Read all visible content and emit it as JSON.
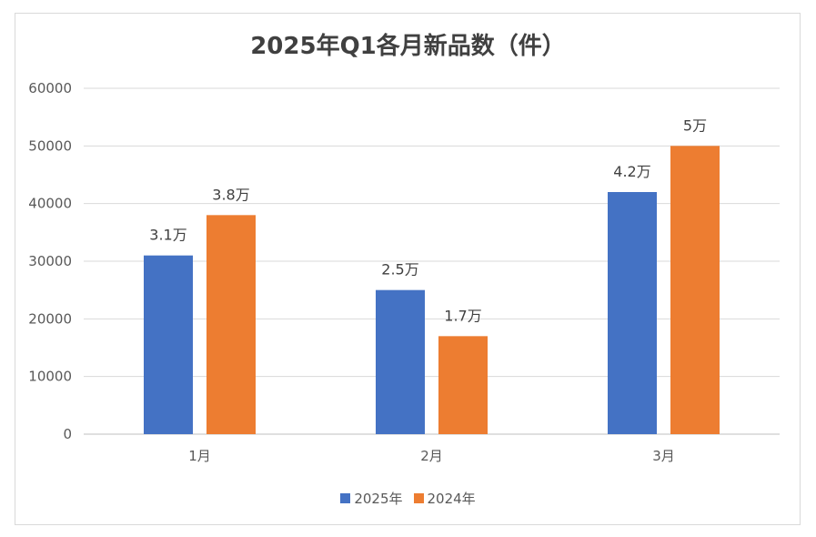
{
  "chart_data": {
    "type": "bar",
    "title": "2025年Q1各月新品数（件）",
    "categories": [
      "1月",
      "2月",
      "3月"
    ],
    "series": [
      {
        "name": "2025年",
        "values": [
          31000,
          25000,
          42000
        ],
        "labels": [
          "3.1万",
          "2.5万",
          "4.2万"
        ],
        "color": "#4472C4"
      },
      {
        "name": "2024年",
        "values": [
          38000,
          17000,
          50000
        ],
        "labels": [
          "3.8万",
          "1.7万",
          "5万"
        ],
        "color": "#ED7D31"
      }
    ],
    "ylim": [
      0,
      60000
    ],
    "yticks": [
      0,
      10000,
      20000,
      30000,
      40000,
      50000,
      60000
    ],
    "grid": true,
    "legend_position": "bottom"
  }
}
